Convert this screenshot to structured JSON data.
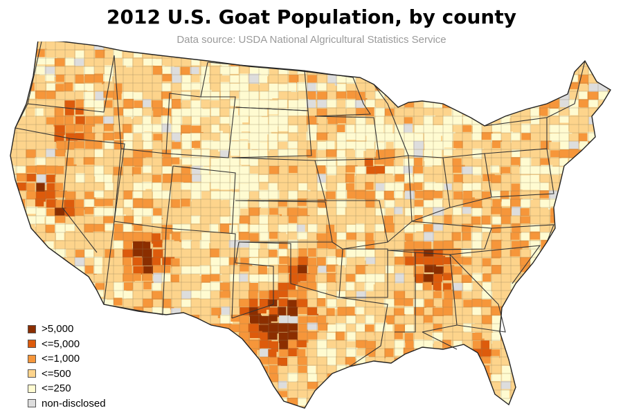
{
  "title": "2012 U.S. Goat Population, by county",
  "subtitle": "Data source: USDA National Algricultural Statistics Service",
  "legend": {
    "items": [
      {
        "label": ">5,000",
        "color": "#8b2e00"
      },
      {
        "label": "<=5,000",
        "color": "#dd5b0c"
      },
      {
        "label": "<=1,000",
        "color": "#f6963a"
      },
      {
        "label": "<=500",
        "color": "#fdd48c"
      },
      {
        "label": "<=250",
        "color": "#fffbd1"
      },
      {
        "label": "non-disclosed",
        "color": "#dddddd"
      }
    ],
    "placement": "bottom-left"
  },
  "map": {
    "region": "Contiguous United States",
    "unit": "county",
    "colors": {
      "state_border": "#333333",
      "county_border": "#8a7a55"
    }
  }
}
